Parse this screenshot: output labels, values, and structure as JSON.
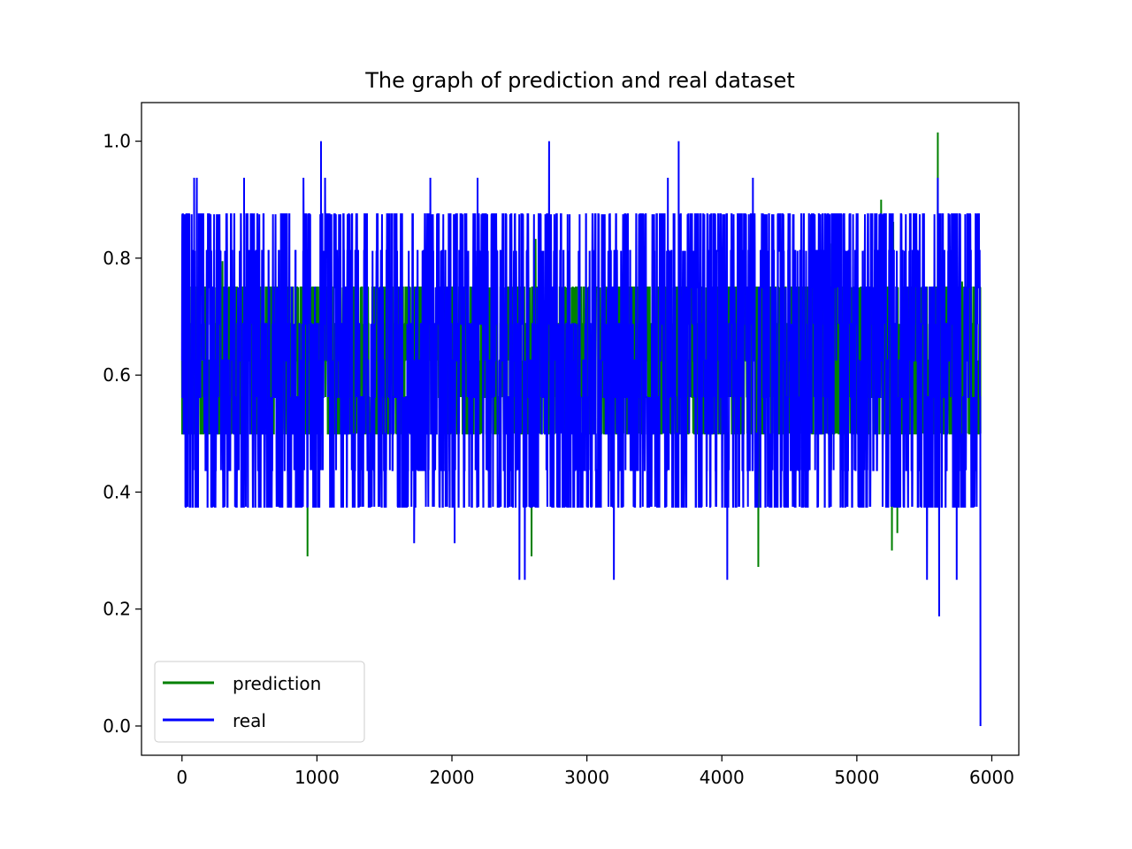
{
  "chart_data": {
    "type": "line",
    "title": "The graph of prediction and real dataset",
    "xlabel": "",
    "ylabel": "",
    "xlim": [
      -300,
      6200
    ],
    "ylim": [
      -0.05,
      1.066
    ],
    "xticks": [
      0,
      1000,
      2000,
      3000,
      4000,
      5000,
      6000
    ],
    "xtick_labels": [
      "0",
      "1000",
      "2000",
      "3000",
      "4000",
      "5000",
      "6000"
    ],
    "yticks": [
      0.0,
      0.2,
      0.4,
      0.6,
      0.8,
      1.0
    ],
    "ytick_labels": [
      "0.0",
      "0.2",
      "0.4",
      "0.6",
      "0.8",
      "1.0"
    ],
    "grid": false,
    "legend_position": "lower-left",
    "legend": [
      "prediction",
      "real"
    ],
    "colors": {
      "prediction": "#008000",
      "real": "#0000ff"
    },
    "n_points": 5917,
    "series": [
      {
        "name": "prediction",
        "levels": [
          0.5,
          0.5625,
          0.625,
          0.6875,
          0.75
        ],
        "spikes": [
          {
            "x": 300,
            "y": 0.795
          },
          {
            "x": 490,
            "y": 0.782
          },
          {
            "x": 930,
            "y": 0.29
          },
          {
            "x": 2590,
            "y": 0.29
          },
          {
            "x": 2620,
            "y": 0.833
          },
          {
            "x": 4270,
            "y": 0.272
          },
          {
            "x": 4800,
            "y": 0.825
          },
          {
            "x": 5180,
            "y": 0.9
          },
          {
            "x": 5270,
            "y": 0.862
          },
          {
            "x": 5260,
            "y": 0.3
          },
          {
            "x": 5300,
            "y": 0.33
          },
          {
            "x": 5600,
            "y": 1.015
          },
          {
            "x": 5610,
            "y": 0.19
          },
          {
            "x": 5780,
            "y": 0.76
          }
        ]
      },
      {
        "name": "real",
        "levels": [
          0.375,
          0.4375,
          0.5,
          0.5625,
          0.625,
          0.6875,
          0.75,
          0.8125,
          0.875
        ],
        "spikes": [
          {
            "x": 90,
            "y": 0.9375
          },
          {
            "x": 110,
            "y": 0.9375
          },
          {
            "x": 460,
            "y": 0.9375
          },
          {
            "x": 900,
            "y": 0.9375
          },
          {
            "x": 1030,
            "y": 1.0
          },
          {
            "x": 1060,
            "y": 0.9375
          },
          {
            "x": 1840,
            "y": 0.9375
          },
          {
            "x": 2190,
            "y": 0.9375
          },
          {
            "x": 2720,
            "y": 1.0
          },
          {
            "x": 3600,
            "y": 0.9375
          },
          {
            "x": 3680,
            "y": 1.0
          },
          {
            "x": 4230,
            "y": 0.9375
          },
          {
            "x": 5600,
            "y": 0.9375
          },
          {
            "x": 1720,
            "y": 0.3125
          },
          {
            "x": 2020,
            "y": 0.3125
          },
          {
            "x": 2500,
            "y": 0.25
          },
          {
            "x": 2540,
            "y": 0.25
          },
          {
            "x": 3200,
            "y": 0.25
          },
          {
            "x": 4040,
            "y": 0.25
          },
          {
            "x": 5520,
            "y": 0.25
          },
          {
            "x": 5610,
            "y": 0.1875
          },
          {
            "x": 5740,
            "y": 0.25
          },
          {
            "x": 5917,
            "y": 0.0
          }
        ]
      }
    ]
  }
}
